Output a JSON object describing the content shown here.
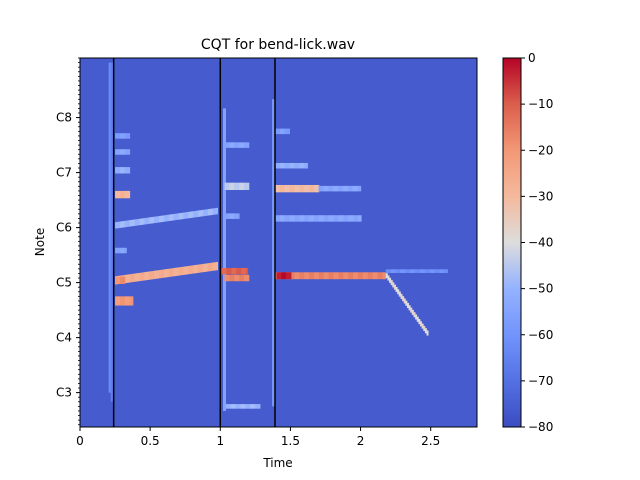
{
  "chart_data": {
    "type": "heatmap",
    "title": "CQT for bend-lick.wav",
    "xlabel": "Time",
    "ylabel": "Note",
    "xlim": [
      0,
      2.83
    ],
    "ylim_midi": [
      40.5,
      121.0
    ],
    "x_ticks": [
      {
        "value": 0,
        "label": "0"
      },
      {
        "value": 0.5,
        "label": "0.5"
      },
      {
        "value": 1,
        "label": "1"
      },
      {
        "value": 1.5,
        "label": "1.5"
      },
      {
        "value": 2,
        "label": "2"
      },
      {
        "value": 2.5,
        "label": "2.5"
      }
    ],
    "y_ticks": [
      {
        "midi": 48,
        "label": "C3"
      },
      {
        "midi": 60,
        "label": "C4"
      },
      {
        "midi": 72,
        "label": "C5"
      },
      {
        "midi": 84,
        "label": "C6"
      },
      {
        "midi": 96,
        "label": "C7"
      },
      {
        "midi": 108,
        "label": "C8"
      }
    ],
    "colorbar": {
      "ticks": [
        0,
        -10,
        -20,
        -30,
        -40,
        -50,
        -60,
        -70,
        -80
      ],
      "range": [
        -80,
        0
      ],
      "colormap": "coolwarm"
    },
    "background_db": -76,
    "onsets": [
      0.24,
      1.0,
      1.39
    ],
    "segments": [
      {
        "t0": 0.25,
        "t1": 0.98,
        "m0": 72.5,
        "m1": 75.6,
        "db": -28,
        "w": 1.8
      },
      {
        "t0": 0.25,
        "t1": 0.98,
        "m0": 84.5,
        "m1": 87.6,
        "db": -50,
        "w": 1.4
      },
      {
        "t0": 0.25,
        "t1": 0.38,
        "m0": 68.0,
        "m1": 68.0,
        "db": -22,
        "w": 2.0
      },
      {
        "t0": 0.25,
        "t1": 0.32,
        "m0": 72.5,
        "m1": 72.5,
        "db": -20,
        "w": 1.6
      },
      {
        "t0": 0.25,
        "t1": 0.36,
        "m0": 91.2,
        "m1": 91.2,
        "db": -30,
        "w": 1.6
      },
      {
        "t0": 0.25,
        "t1": 0.36,
        "m0": 96.5,
        "m1": 96.5,
        "db": -52,
        "w": 1.4
      },
      {
        "t0": 0.25,
        "t1": 0.36,
        "m0": 100.5,
        "m1": 100.5,
        "db": -55,
        "w": 1.2
      },
      {
        "t0": 0.25,
        "t1": 0.36,
        "m0": 104.0,
        "m1": 104.0,
        "db": -58,
        "w": 1.2
      },
      {
        "t0": 0.25,
        "t1": 0.33,
        "m0": 79.0,
        "m1": 79.0,
        "db": -56,
        "w": 1.2
      },
      {
        "t0": 1.01,
        "t1": 1.2,
        "m0": 74.5,
        "m1": 74.5,
        "db": -12,
        "w": 1.4
      },
      {
        "t0": 1.03,
        "t1": 1.2,
        "m0": 73.0,
        "m1": 73.0,
        "db": -18,
        "w": 1.4
      },
      {
        "t0": 1.03,
        "t1": 1.2,
        "m0": 93.0,
        "m1": 93.0,
        "db": -45,
        "w": 1.6
      },
      {
        "t0": 1.03,
        "t1": 1.13,
        "m0": 86.5,
        "m1": 86.5,
        "db": -55,
        "w": 1.2
      },
      {
        "t0": 1.03,
        "t1": 1.2,
        "m0": 102.0,
        "m1": 102.0,
        "db": -55,
        "w": 1.2
      },
      {
        "t0": 1.04,
        "t1": 1.28,
        "m0": 45.0,
        "m1": 45.0,
        "db": -50,
        "w": 1.0
      },
      {
        "t0": 1.39,
        "t1": 2.18,
        "m0": 73.5,
        "m1": 73.5,
        "db": -18,
        "w": 1.5
      },
      {
        "t0": 2.18,
        "t1": 2.48,
        "m0": 73.5,
        "m1": 61.0,
        "db": -40,
        "w": 1.1
      },
      {
        "t0": 1.4,
        "t1": 1.5,
        "m0": 73.5,
        "m1": 73.5,
        "db": -3,
        "w": 1.5
      },
      {
        "t0": 1.39,
        "t1": 1.7,
        "m0": 92.5,
        "m1": 92.5,
        "db": -32,
        "w": 1.6
      },
      {
        "t0": 1.7,
        "t1": 2.0,
        "m0": 92.5,
        "m1": 92.5,
        "db": -55,
        "w": 1.2
      },
      {
        "t0": 1.39,
        "t1": 2.0,
        "m0": 86.0,
        "m1": 86.0,
        "db": -55,
        "w": 1.4
      },
      {
        "t0": 1.39,
        "t1": 1.62,
        "m0": 97.5,
        "m1": 97.5,
        "db": -52,
        "w": 1.2
      },
      {
        "t0": 1.39,
        "t1": 1.5,
        "m0": 105.0,
        "m1": 105.0,
        "db": -58,
        "w": 1.2
      },
      {
        "t0": 2.18,
        "t1": 2.62,
        "m0": 74.5,
        "m1": 74.5,
        "db": -62,
        "w": 0.8
      }
    ],
    "transients": [
      {
        "t": 0.215,
        "m0": 48,
        "m1": 120,
        "db": -62
      },
      {
        "t": 0.23,
        "m0": 46,
        "m1": 120,
        "db": -66
      },
      {
        "t": 1.03,
        "m0": 44,
        "m1": 110,
        "db": -55
      },
      {
        "t": 1.38,
        "m0": 45,
        "m1": 112,
        "db": -58
      }
    ]
  },
  "colors": {
    "axis": "#000000",
    "background": "#ffffff"
  }
}
